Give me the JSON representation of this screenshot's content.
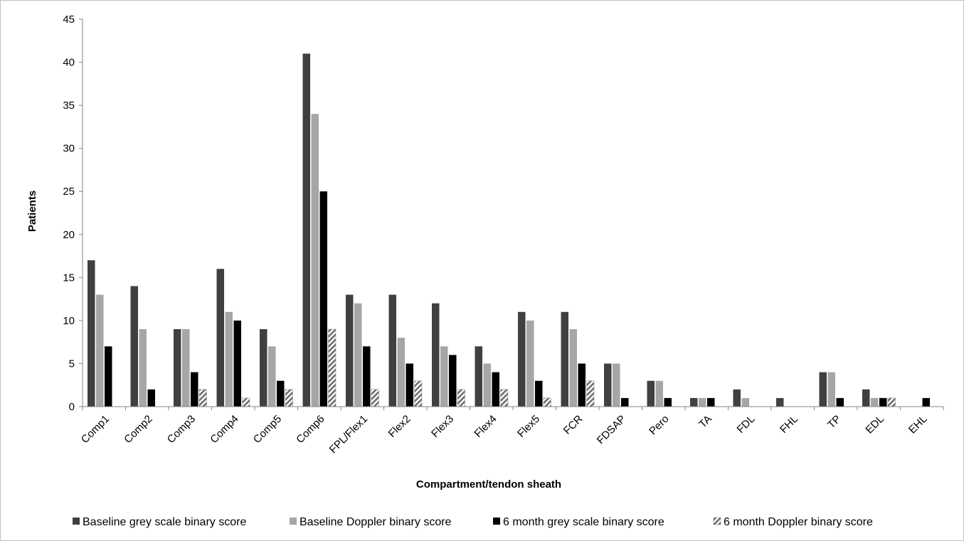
{
  "chart_data": {
    "type": "bar",
    "title": "",
    "xlabel": "Compartment/tendon sheath",
    "ylabel": "Patients",
    "ylim": [
      0,
      45
    ],
    "yticks": [
      0,
      5,
      10,
      15,
      20,
      25,
      30,
      35,
      40,
      45
    ],
    "grid": false,
    "legend_position": "bottom",
    "categories": [
      "Comp1",
      "Comp2",
      "Comp3",
      "Comp4",
      "Comp5",
      "Comp6",
      "FPL/Flex1",
      "Flex2",
      "Flex3",
      "Flex4",
      "Flex5",
      "FCR",
      "FDSAP",
      "Pero",
      "TA",
      "FDL",
      "FHL",
      "TP",
      "EDL",
      "EHL"
    ],
    "series": [
      {
        "name": "Baseline grey scale binary score",
        "color": "#404040",
        "pattern": "solid",
        "values": [
          17,
          14,
          9,
          16,
          9,
          41,
          13,
          13,
          12,
          7,
          11,
          11,
          5,
          3,
          1,
          2,
          1,
          4,
          2,
          0
        ]
      },
      {
        "name": "Baseline Doppler binary score",
        "color": "#a6a6a6",
        "pattern": "solid",
        "values": [
          13,
          9,
          9,
          11,
          7,
          34,
          12,
          8,
          7,
          5,
          10,
          9,
          5,
          3,
          1,
          1,
          0,
          4,
          1,
          0
        ]
      },
      {
        "name": "6 month grey scale binary score",
        "color": "#000000",
        "pattern": "solid",
        "values": [
          7,
          2,
          4,
          10,
          3,
          25,
          7,
          5,
          6,
          4,
          3,
          5,
          1,
          1,
          1,
          0,
          0,
          1,
          1,
          1
        ]
      },
      {
        "name": "6 month Doppler binary score",
        "color": "#7f7f7f",
        "pattern": "diagonal-hatch",
        "values": [
          0,
          0,
          2,
          1,
          2,
          9,
          2,
          3,
          2,
          2,
          1,
          3,
          0,
          0,
          0,
          0,
          0,
          0,
          1,
          0
        ]
      }
    ]
  }
}
